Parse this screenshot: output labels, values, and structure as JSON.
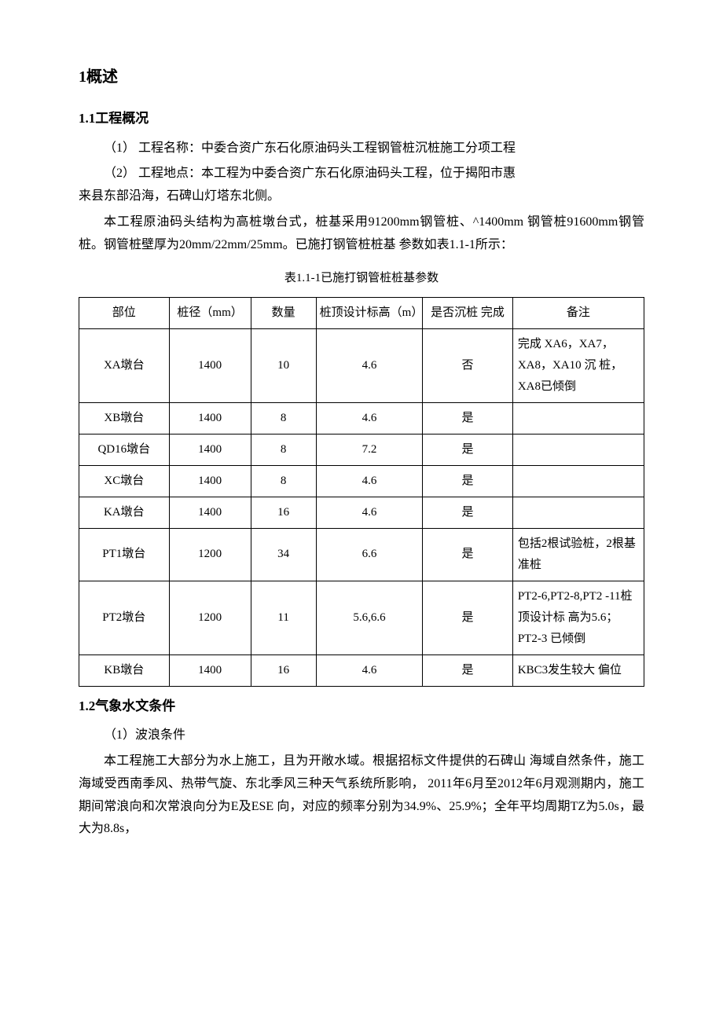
{
  "headings": {
    "h1": "1概述",
    "h2_1": "1.1工程概况",
    "h2_2": "1.2气象水文条件"
  },
  "paragraphs": {
    "p1": "（1）   工程名称：中委合资广东石化原油码头工程钢管桩沉桩施工分项工程",
    "p2": "（2）   工程地点：本工程为中委合资广东石化原油码头工程，位于揭阳市惠来县东部沿海，石碑山灯塔东北侧。",
    "p3": "本工程原油码头结构为高桩墩台式，桩基采用91200mm钢管桩、^1400mm 钢管桩91600mm钢管桩。钢管桩壁厚为20mm/22mm/25mm。已施打钢管桩桩基 参数如表1.1-1所示：",
    "caption": "表1.1-1已施打钢管桩桩基参数",
    "p4": "（1）波浪条件",
    "p5": "本工程施工大部分为水上施工，且为开敞水域。根据招标文件提供的石碑山 海域自然条件，施工海域受西南季风、热带气旋、东北季风三种天气系统所影响，   2011年6月至2012年6月观测期内，施工期间常浪向和次常浪向分为E及ESE 向，对应的频率分别为34.9%、25.9%；全年平均周期TZ为5.0s，最大为8.8s，"
  },
  "table": {
    "headers": {
      "pos": "部位",
      "dia": "桩径（mm）",
      "qty": "数量",
      "top": "桩顶设计标高（m）",
      "done": "是否沉桩 完成",
      "remark": "备注"
    },
    "rows": [
      {
        "pos": "XA墩台",
        "dia": "1400",
        "qty": "10",
        "top": "4.6",
        "done": "否",
        "remark": "完成 XA6，XA7，XA8，XA10 沉 桩，XA8已倾倒"
      },
      {
        "pos": "XB墩台",
        "dia": "1400",
        "qty": "8",
        "top": "4.6",
        "done": "是",
        "remark": ""
      },
      {
        "pos": "QD16墩台",
        "dia": "1400",
        "qty": "8",
        "top": "7.2",
        "done": "是",
        "remark": ""
      },
      {
        "pos": "XC墩台",
        "dia": "1400",
        "qty": "8",
        "top": "4.6",
        "done": "是",
        "remark": ""
      },
      {
        "pos": "KA墩台",
        "dia": "1400",
        "qty": "16",
        "top": "4.6",
        "done": "是",
        "remark": ""
      },
      {
        "pos": "PT1墩台",
        "dia": "1200",
        "qty": "34",
        "top": "6.6",
        "done": "是",
        "remark": "包括2根试验桩，2根基准桩"
      },
      {
        "pos": "PT2墩台",
        "dia": "1200",
        "qty": "11",
        "top": "5.6,6.6",
        "done": "是",
        "remark": "PT2-6,PT2-8,PT2 -11桩顶设计标 高为5.6；  PT2-3 已倾倒"
      },
      {
        "pos": "KB墩台",
        "dia": "1400",
        "qty": "16",
        "top": "4.6",
        "done": "是",
        "remark": "KBC3发生较大 偏位"
      }
    ]
  },
  "styles": {
    "background_color": "#ffffff",
    "text_color": "#000000",
    "border_color": "#000000",
    "body_fontsize": 16,
    "h1_fontsize": 20,
    "h2_fontsize": 17,
    "caption_fontsize": 15,
    "table_fontsize": 15
  }
}
